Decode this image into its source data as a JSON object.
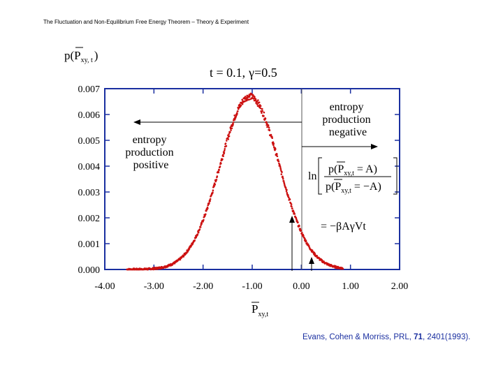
{
  "header": {
    "title": "The Fluctuation and Non-Equilibrium Free Energy Theorem – Theory & Experiment"
  },
  "citation": {
    "authors": "Evans, Cohen & Morriss, PRL,",
    "volume": "71",
    "pages_year": ", 2401(1993)."
  },
  "chart_data": {
    "type": "scatter",
    "title_t": "t = 0.1,",
    "title_gamma": "γ=0.5",
    "ylabel_main": "p(P",
    "ylabel_sub": "xy, t",
    "ylabel_close": ")",
    "xlabel_main": "P",
    "xlabel_sub": "xy,t",
    "xlim": [
      -4.0,
      2.0
    ],
    "ylim": [
      0.0,
      0.007
    ],
    "xticks": [
      "-4.00",
      "-3.00",
      "-2.00",
      "-1.00",
      "0.00",
      "1.00",
      "2.00"
    ],
    "yticks": [
      "0.000",
      "0.001",
      "0.002",
      "0.003",
      "0.004",
      "0.005",
      "0.006",
      "0.007"
    ],
    "series": [
      {
        "name": "distribution",
        "color": "#cc1111",
        "mean": -1.05,
        "sd": 0.6,
        "peak": 0.0067
      }
    ],
    "annotations": {
      "positive": [
        "entropy",
        "production",
        "positive"
      ],
      "negative": [
        "entropy",
        "production",
        "negative"
      ],
      "formula": {
        "ln": "ln",
        "num_left": "p(P",
        "num_sub": "xy,t",
        "num_right": " = A)",
        "den_left": "p(P",
        "den_sub": "xy,t",
        "den_right": " = −A)",
        "rhs": "= −βAγVt"
      }
    },
    "colors": {
      "axis": "#1a2fa0",
      "data": "#cc1111",
      "text": "#000000"
    }
  }
}
